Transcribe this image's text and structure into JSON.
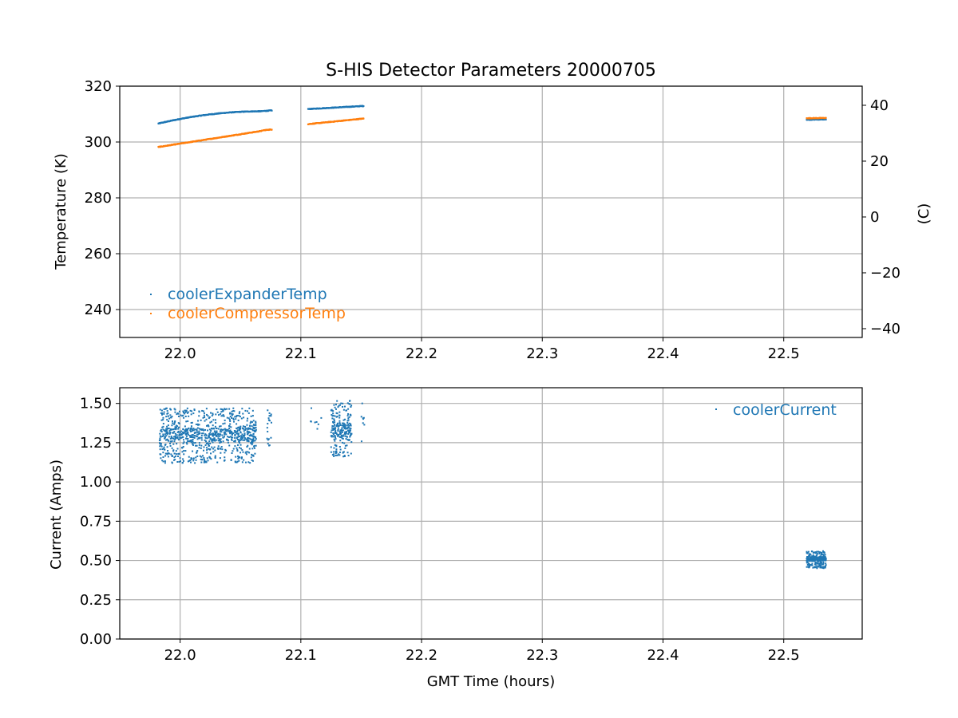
{
  "chart_data": [
    {
      "type": "scatter",
      "title": "S-HIS Detector Parameters 20000705",
      "ylabel": "Temperature (K)",
      "y2label": "(C)",
      "xlim": [
        21.95,
        22.565
      ],
      "ylim": [
        230,
        320
      ],
      "y2lim": [
        -43.15,
        46.85
      ],
      "xticks": [
        22.0,
        22.1,
        22.2,
        22.3,
        22.4,
        22.5
      ],
      "xtick_labels": [
        "22.0",
        "22.1",
        "22.2",
        "22.3",
        "22.4",
        "22.5"
      ],
      "yticks": [
        240,
        260,
        280,
        300,
        320
      ],
      "ytick_labels": [
        "240",
        "260",
        "280",
        "300",
        "320"
      ],
      "y2ticks": [
        -40,
        -20,
        0,
        20,
        40
      ],
      "y2tick_labels": [
        "−40",
        "−20",
        "0",
        "20",
        "40"
      ],
      "grid": true,
      "legend_position": "lower-left",
      "series": [
        {
          "name": "coolerExpanderTemp",
          "color": "#1f77b4",
          "segments": [
            {
              "x_start": 21.982,
              "x_end": 22.068,
              "y_start": 306.6,
              "y_end": 311.0,
              "shape": "saturating"
            },
            {
              "x_start": 22.069,
              "x_end": 22.076,
              "y_start": 311.1,
              "y_end": 311.3,
              "shape": "linear"
            },
            {
              "x_start": 22.106,
              "x_end": 22.152,
              "y_start": 311.8,
              "y_end": 312.9,
              "shape": "linear"
            },
            {
              "x_start": 22.519,
              "x_end": 22.535,
              "y_start": 308.0,
              "y_end": 308.1,
              "shape": "linear"
            }
          ]
        },
        {
          "name": "coolerCompressorTemp",
          "color": "#ff7f0e",
          "segments": [
            {
              "x_start": 21.982,
              "x_end": 22.068,
              "y_start": 298.2,
              "y_end": 304.0,
              "shape": "linear"
            },
            {
              "x_start": 22.069,
              "x_end": 22.076,
              "y_start": 304.2,
              "y_end": 304.5,
              "shape": "linear"
            },
            {
              "x_start": 22.106,
              "x_end": 22.152,
              "y_start": 306.4,
              "y_end": 308.4,
              "shape": "linear"
            },
            {
              "x_start": 22.519,
              "x_end": 22.535,
              "y_start": 308.5,
              "y_end": 308.6,
              "shape": "linear"
            }
          ]
        }
      ]
    },
    {
      "type": "scatter",
      "title": "",
      "xlabel": "GMT Time (hours)",
      "ylabel": "Current (Amps)",
      "xlim": [
        21.95,
        22.565
      ],
      "ylim": [
        0.0,
        1.6
      ],
      "xticks": [
        22.0,
        22.1,
        22.2,
        22.3,
        22.4,
        22.5
      ],
      "xtick_labels": [
        "22.0",
        "22.1",
        "22.2",
        "22.3",
        "22.4",
        "22.5"
      ],
      "yticks": [
        0.0,
        0.25,
        0.5,
        0.75,
        1.0,
        1.25,
        1.5
      ],
      "ytick_labels": [
        "0.00",
        "0.25",
        "0.50",
        "0.75",
        "1.00",
        "1.25",
        "1.50"
      ],
      "grid": true,
      "legend_position": "upper-right",
      "series": [
        {
          "name": "coolerCurrent",
          "color": "#1f77b4",
          "clusters": [
            {
              "x_start": 21.983,
              "x_end": 22.063,
              "y_center": 1.3,
              "y_min": 1.12,
              "y_max": 1.47,
              "count": 900
            },
            {
              "x_start": 22.072,
              "x_end": 22.076,
              "y_center": 1.4,
              "y_min": 1.2,
              "y_max": 1.52,
              "count": 20
            },
            {
              "x_start": 22.106,
              "x_end": 22.118,
              "y_center": 1.4,
              "y_min": 1.32,
              "y_max": 1.49,
              "count": 8
            },
            {
              "x_start": 22.125,
              "x_end": 22.142,
              "y_center": 1.33,
              "y_min": 1.16,
              "y_max": 1.52,
              "count": 230
            },
            {
              "x_start": 22.15,
              "x_end": 22.153,
              "y_center": 1.4,
              "y_min": 1.24,
              "y_max": 1.52,
              "count": 8
            },
            {
              "x_start": 22.519,
              "x_end": 22.535,
              "y_center": 0.51,
              "y_min": 0.45,
              "y_max": 0.56,
              "count": 300
            }
          ]
        }
      ]
    }
  ]
}
